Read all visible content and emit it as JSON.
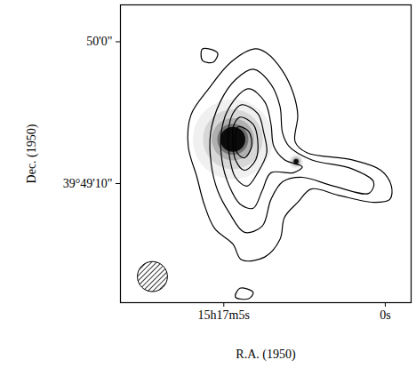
{
  "chart_data": {
    "type": "contour",
    "xlabel": "R.A. (1950)",
    "ylabel": "Dec. (1950)",
    "xlim": [
      8.2,
      -0.8
    ],
    "ylim": [
      -32,
      73
    ],
    "xticks": [
      {
        "value": 5,
        "label": "15h17m5s"
      },
      {
        "value": 0,
        "label": "0s"
      }
    ],
    "yticks": [
      {
        "value": 60,
        "label": "50'0\""
      },
      {
        "value": 10,
        "label": "39°49'10\""
      }
    ],
    "color": "#000000",
    "contours": [
      [
        [
          4.03,
          57.5
        ],
        [
          3.67,
          56
        ],
        [
          3.18,
          49.7
        ],
        [
          2.85,
          41.9
        ],
        [
          2.71,
          34.1
        ],
        [
          2.79,
          24.7
        ],
        [
          2.43,
          20.9
        ],
        [
          1.05,
          18.4
        ],
        [
          0.14,
          14.7
        ],
        [
          -0.19,
          9.1
        ],
        [
          -0.14,
          4.4
        ],
        [
          0.36,
          3.4
        ],
        [
          1.46,
          5.9
        ],
        [
          2.29,
          8.1
        ],
        [
          2.71,
          3.4
        ],
        [
          3.12,
          -1.9
        ],
        [
          3.26,
          -9.7
        ],
        [
          3.73,
          -15.9
        ],
        [
          4.45,
          -16.9
        ],
        [
          4.72,
          -11.3
        ],
        [
          5.28,
          -5.9
        ],
        [
          5.61,
          2.8
        ],
        [
          5.83,
          12.2
        ],
        [
          6.1,
          23.1
        ],
        [
          6.02,
          34.1
        ],
        [
          5.47,
          43.4
        ],
        [
          4.78,
          52.8
        ]
      ],
      [
        [
          4.09,
          50.3
        ],
        [
          3.54,
          45
        ],
        [
          3.26,
          37.2
        ],
        [
          3.18,
          27.8
        ],
        [
          2.98,
          23.1
        ],
        [
          2.29,
          18.4
        ],
        [
          1.05,
          15.3
        ],
        [
          0.36,
          10.6
        ],
        [
          0.5,
          6.6
        ],
        [
          1.6,
          9.1
        ],
        [
          2.57,
          12.2
        ],
        [
          3.18,
          10.6
        ],
        [
          3.54,
          4.4
        ],
        [
          3.81,
          -5
        ],
        [
          4.36,
          -7.2
        ],
        [
          4.83,
          -0.3
        ],
        [
          5.19,
          7.5
        ],
        [
          5.39,
          16.9
        ],
        [
          5.41,
          27.8
        ],
        [
          5.11,
          38.8
        ],
        [
          4.64,
          46.6
        ]
      ],
      [
        [
          4.23,
          43.4
        ],
        [
          3.73,
          38.8
        ],
        [
          3.54,
          31
        ],
        [
          3.45,
          23.1
        ],
        [
          3.12,
          18.4
        ],
        [
          2.57,
          15.9
        ],
        [
          2.85,
          13.8
        ],
        [
          3.54,
          13.8
        ],
        [
          3.81,
          7.5
        ],
        [
          4.09,
          1.3
        ],
        [
          4.5,
          2.8
        ],
        [
          4.83,
          9.1
        ],
        [
          5.06,
          18.4
        ],
        [
          5.06,
          29.4
        ],
        [
          4.78,
          37.8
        ]
      ],
      [
        [
          4.45,
          37.8
        ],
        [
          3.95,
          34.7
        ],
        [
          3.76,
          27.8
        ],
        [
          3.67,
          20.9
        ],
        [
          3.95,
          13.8
        ],
        [
          4.28,
          9.1
        ],
        [
          4.64,
          12.2
        ],
        [
          4.83,
          20
        ],
        [
          4.86,
          28.4
        ],
        [
          4.72,
          34.7
        ]
      ],
      [
        [
          4.5,
          33.4
        ],
        [
          4.09,
          30.9
        ],
        [
          3.95,
          25.3
        ],
        [
          4.01,
          18.4
        ],
        [
          4.36,
          14.7
        ],
        [
          4.64,
          18.4
        ],
        [
          4.72,
          24.7
        ],
        [
          4.7,
          30.3
        ]
      ],
      [
        [
          4.56,
          30
        ],
        [
          4.23,
          28.4
        ],
        [
          4.14,
          23.1
        ],
        [
          4.36,
          19.1
        ],
        [
          4.59,
          20.9
        ],
        [
          4.64,
          26.3
        ]
      ],
      [
        [
          5.66,
          57.5
        ],
        [
          5.19,
          56
        ],
        [
          5.33,
          52.8
        ],
        [
          5.66,
          53.4
        ]
      ],
      [
        [
          4.5,
          -26.9
        ],
        [
          4.09,
          -28.4
        ],
        [
          4.23,
          -30.6
        ],
        [
          4.64,
          -30
        ]
      ]
    ],
    "optical_sources": [
      {
        "ra": 4.72,
        "dec": 25.6,
        "radius": 4.4
      },
      {
        "ra": 2.76,
        "dec": 17.8,
        "radius": 0.8
      }
    ],
    "beam": {
      "ra": 7.21,
      "dec": -22.8,
      "radius": 5.3
    }
  }
}
